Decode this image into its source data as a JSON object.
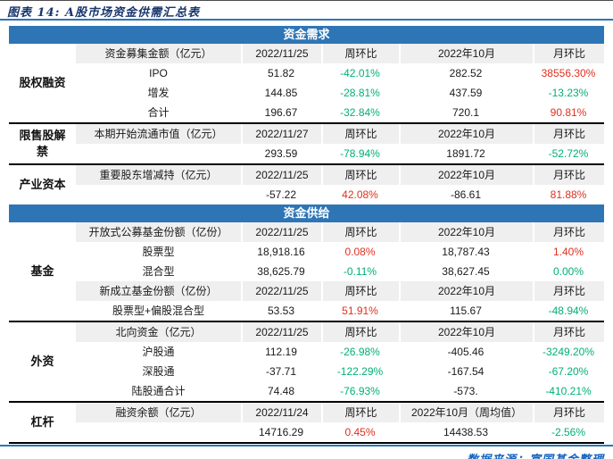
{
  "title": "图表 14: A股市场资金供需汇总表",
  "source_note": "数据来源：富国基金整理",
  "colors": {
    "accent_blue": "#2e75b6",
    "header_gray": "#efefef",
    "positive_red": "#e0301e",
    "negative_green": "#00b074",
    "title_navy": "#17366d",
    "footer_blue": "#1565c0"
  },
  "chart_data": {
    "type": "table",
    "title": "A股市场资金供需汇总表",
    "figure_label": "图表 14",
    "sections": [
      {
        "banner": "资金需求",
        "groups": [
          {
            "label": "股权融资",
            "blocks": [
              {
                "header": [
                  "资金募集金额（亿元）",
                  "2022/11/25",
                  "周环比",
                  "2022年10月",
                  "月环比"
                ],
                "rows": [
                  {
                    "name": "IPO",
                    "week_value": "51.82",
                    "week_chg": "-42.01%",
                    "week_chg_color": "green",
                    "month_value": "282.52",
                    "month_chg": "38556.30%",
                    "month_chg_color": "red"
                  },
                  {
                    "name": "增发",
                    "week_value": "144.85",
                    "week_chg": "-28.81%",
                    "week_chg_color": "green",
                    "month_value": "437.59",
                    "month_chg": "-13.23%",
                    "month_chg_color": "green"
                  },
                  {
                    "name": "合计",
                    "week_value": "196.67",
                    "week_chg": "-32.84%",
                    "week_chg_color": "green",
                    "month_value": "720.1",
                    "month_chg": "90.81%",
                    "month_chg_color": "red"
                  }
                ]
              }
            ]
          },
          {
            "label": "限售股解禁",
            "blocks": [
              {
                "header": [
                  "本期开始流通市值（亿元）",
                  "2022/11/27",
                  "周环比",
                  "2022年10月",
                  "月环比"
                ],
                "rows": [
                  {
                    "name": "",
                    "week_value": "293.59",
                    "week_chg": "-78.94%",
                    "week_chg_color": "green",
                    "month_value": "1891.72",
                    "month_chg": "-52.72%",
                    "month_chg_color": "green"
                  }
                ]
              }
            ]
          },
          {
            "label": "产业资本",
            "blocks": [
              {
                "header": [
                  "重要股东增减持（亿元）",
                  "2022/11/25",
                  "周环比",
                  "2022年10月",
                  "月环比"
                ],
                "rows": [
                  {
                    "name": "",
                    "week_value": "-57.22",
                    "week_chg": "42.08%",
                    "week_chg_color": "red",
                    "month_value": "-86.61",
                    "month_chg": "81.88%",
                    "month_chg_color": "red"
                  }
                ]
              }
            ]
          }
        ]
      },
      {
        "banner": "资金供给",
        "groups": [
          {
            "label": "基金",
            "blocks": [
              {
                "header": [
                  "开放式公募基金份额（亿份）",
                  "2022/11/25",
                  "周环比",
                  "2022年10月",
                  "月环比"
                ],
                "rows": [
                  {
                    "name": "股票型",
                    "week_value": "18,918.16",
                    "week_chg": "0.08%",
                    "week_chg_color": "red",
                    "month_value": "18,787.43",
                    "month_chg": "1.40%",
                    "month_chg_color": "red"
                  },
                  {
                    "name": "混合型",
                    "week_value": "38,625.79",
                    "week_chg": "-0.11%",
                    "week_chg_color": "green",
                    "month_value": "38,627.45",
                    "month_chg": "0.00%",
                    "month_chg_color": "green"
                  }
                ]
              },
              {
                "header": [
                  "新成立基金份额（亿份）",
                  "2022/11/25",
                  "周环比",
                  "2022年10月",
                  "月环比"
                ],
                "rows": [
                  {
                    "name": "股票型+偏股混合型",
                    "week_value": "53.53",
                    "week_chg": "51.91%",
                    "week_chg_color": "red",
                    "month_value": "115.67",
                    "month_chg": "-48.94%",
                    "month_chg_color": "green"
                  }
                ]
              }
            ]
          },
          {
            "label": "外资",
            "blocks": [
              {
                "header": [
                  "北向资金（亿元）",
                  "2022/11/25",
                  "周环比",
                  "2022年10月",
                  "月环比"
                ],
                "rows": [
                  {
                    "name": "沪股通",
                    "week_value": "112.19",
                    "week_chg": "-26.98%",
                    "week_chg_color": "green",
                    "month_value": "-405.46",
                    "month_chg": "-3249.20%",
                    "month_chg_color": "green"
                  },
                  {
                    "name": "深股通",
                    "week_value": "-37.71",
                    "week_chg": "-122.29%",
                    "week_chg_color": "green",
                    "month_value": "-167.54",
                    "month_chg": "-67.20%",
                    "month_chg_color": "green"
                  },
                  {
                    "name": "陆股通合计",
                    "week_value": "74.48",
                    "week_chg": "-76.93%",
                    "week_chg_color": "green",
                    "month_value": "-573.",
                    "month_chg": "-410.21%",
                    "month_chg_color": "green"
                  }
                ]
              }
            ]
          },
          {
            "label": "杠杆",
            "blocks": [
              {
                "header": [
                  "融资余额（亿元）",
                  "2022/11/24",
                  "周环比",
                  "2022年10月（周均值）",
                  "月环比"
                ],
                "rows": [
                  {
                    "name": "",
                    "week_value": "14716.29",
                    "week_chg": "0.45%",
                    "week_chg_color": "red",
                    "month_value": "14438.53",
                    "month_chg": "-2.56%",
                    "month_chg_color": "green"
                  }
                ]
              }
            ]
          }
        ]
      }
    ]
  }
}
